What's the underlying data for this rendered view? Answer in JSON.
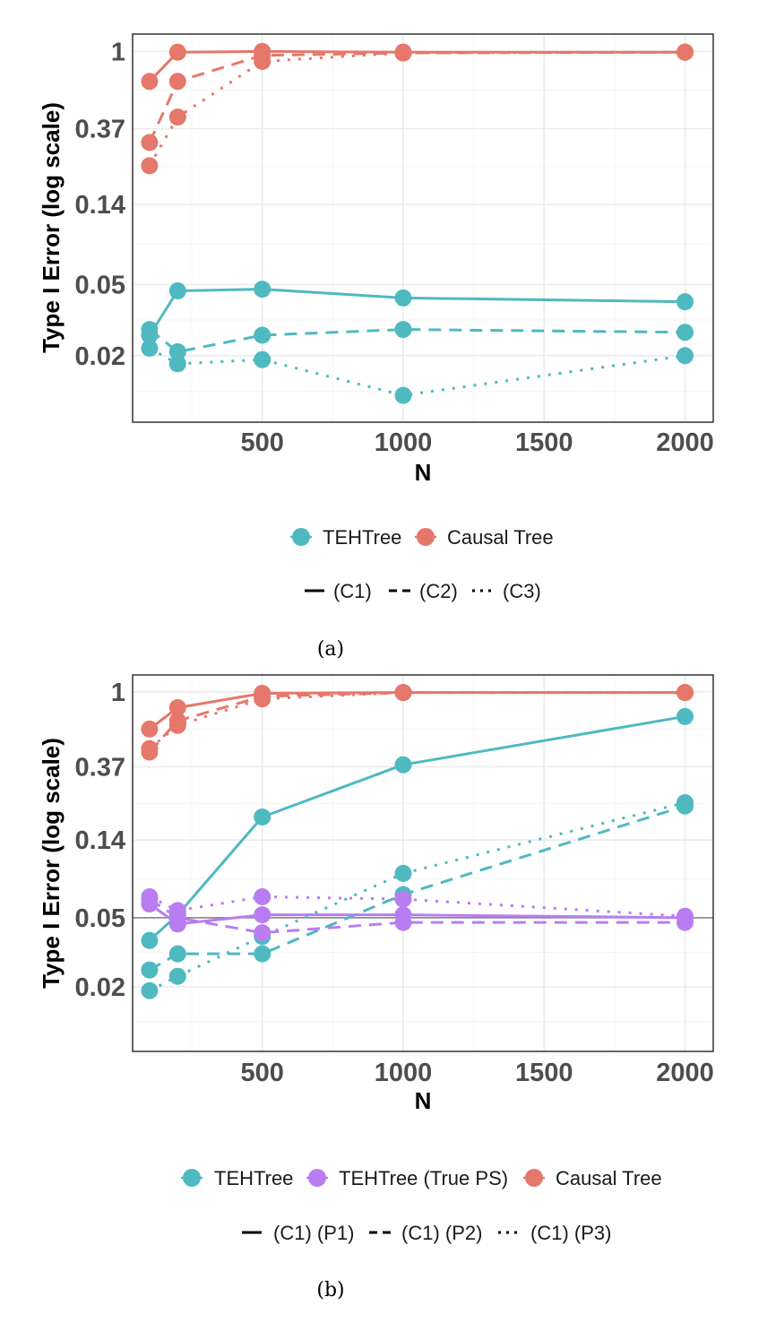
{
  "chart_data": [
    {
      "type": "line",
      "caption": "(a)",
      "xlabel": "N",
      "ylabel": "Type I Error (log scale)",
      "yscale": "log",
      "xlim": [
        40,
        2100
      ],
      "ylim": [
        0.0085,
        1.25
      ],
      "xticks": [
        500,
        1000,
        1500,
        2000
      ],
      "xtick_labels": [
        "500",
        "1000",
        "1500",
        "2000"
      ],
      "yticks": [
        0.02,
        0.05,
        0.14,
        0.37,
        1
      ],
      "ytick_labels": [
        "0.02",
        "0.05",
        "0.14",
        "0.37",
        "1"
      ],
      "x": [
        100,
        200,
        500,
        1000,
        2000
      ],
      "series": [
        {
          "name": "TEHTree (C1)",
          "method": "TEHTree",
          "setting": "(C1)",
          "values": [
            0.026,
            0.046,
            0.047,
            0.042,
            0.04
          ]
        },
        {
          "name": "TEHTree (C2)",
          "method": "TEHTree",
          "setting": "(C2)",
          "values": [
            0.028,
            0.021,
            0.026,
            0.028,
            0.027
          ]
        },
        {
          "name": "TEHTree (C3)",
          "method": "TEHTree",
          "setting": "(C3)",
          "values": [
            0.022,
            0.018,
            0.019,
            0.012,
            0.02
          ]
        },
        {
          "name": "Causal Tree (C1)",
          "method": "Causal Tree",
          "setting": "(C1)",
          "values": [
            0.68,
            0.99,
            1.0,
            0.99,
            0.99
          ]
        },
        {
          "name": "Causal Tree (C2)",
          "method": "Causal Tree",
          "setting": "(C2)",
          "values": [
            0.31,
            0.68,
            0.95,
            0.98,
            0.99
          ]
        },
        {
          "name": "Causal Tree (C3)",
          "method": "Causal Tree",
          "setting": "(C3)",
          "values": [
            0.23,
            0.43,
            0.88,
            0.98,
            0.99
          ]
        }
      ],
      "legend": {
        "placement": "bottom",
        "colour_entries": [
          "TEHTree",
          "Causal Tree"
        ],
        "linetype_entries": [
          "(C1)",
          "(C2)",
          "(C3)"
        ]
      }
    },
    {
      "type": "line",
      "caption": "(b)",
      "xlabel": "N",
      "ylabel": "Type I Error (log scale)",
      "yscale": "log",
      "xlim": [
        40,
        2100
      ],
      "ylim": [
        0.0085,
        1.25
      ],
      "xticks": [
        500,
        1000,
        1500,
        2000
      ],
      "xtick_labels": [
        "500",
        "1000",
        "1500",
        "2000"
      ],
      "yticks": [
        0.02,
        0.05,
        0.14,
        0.37,
        1
      ],
      "ytick_labels": [
        "0.02",
        "0.05",
        "0.14",
        "0.37",
        "1"
      ],
      "reference_line": 0.05,
      "x": [
        100,
        200,
        500,
        1000,
        2000
      ],
      "series": [
        {
          "name": "TEHTree (C1) (P1)",
          "method": "TEHTree",
          "setting": "(C1) (P1)",
          "values": [
            0.037,
            0.052,
            0.19,
            0.38,
            0.72
          ]
        },
        {
          "name": "TEHTree (C1) (P2)",
          "method": "TEHTree",
          "setting": "(C1) (P2)",
          "values": [
            0.025,
            0.031,
            0.031,
            0.068,
            0.22
          ]
        },
        {
          "name": "TEHTree (C1) (P3)",
          "method": "TEHTree",
          "setting": "(C1) (P3)",
          "values": [
            0.019,
            0.023,
            0.039,
            0.09,
            0.23
          ]
        },
        {
          "name": "TEHTree (True PS) (C1) (P1)",
          "method": "TEHTree (True PS)",
          "setting": "(C1) (P1)",
          "values": [
            0.06,
            0.046,
            0.052,
            0.052,
            0.05
          ]
        },
        {
          "name": "TEHTree (True PS) (C1) (P2)",
          "method": "TEHTree (True PS)",
          "setting": "(C1) (P2)",
          "values": [
            0.064,
            0.05,
            0.041,
            0.047,
            0.047
          ]
        },
        {
          "name": "TEHTree (True PS) (C1) (P3)",
          "method": "TEHTree (True PS)",
          "setting": "(C1) (P3)",
          "values": [
            0.066,
            0.055,
            0.066,
            0.064,
            0.051
          ]
        },
        {
          "name": "Causal Tree (C1) (P1)",
          "method": "Causal Tree",
          "setting": "(C1) (P1)",
          "values": [
            0.61,
            0.81,
            0.98,
            0.99,
            0.99
          ]
        },
        {
          "name": "Causal Tree (C1) (P2)",
          "method": "Causal Tree",
          "setting": "(C1) (P2)",
          "values": [
            0.45,
            0.68,
            0.94,
            0.99,
            0.99
          ]
        },
        {
          "name": "Causal Tree (C1) (P3)",
          "method": "Causal Tree",
          "setting": "(C1) (P3)",
          "values": [
            0.47,
            0.64,
            0.91,
            0.99,
            0.99
          ]
        }
      ],
      "legend": {
        "placement": "bottom",
        "colour_entries": [
          "TEHTree",
          "TEHTree (True PS)",
          "Causal Tree"
        ],
        "linetype_entries": [
          "(C1) (P1)",
          "(C1) (P2)",
          "(C1) (P3)"
        ]
      }
    }
  ],
  "colors": {
    "TEHTree": "#4fb9c0",
    "TEHTree (True PS)": "#b97df2",
    "Causal Tree": "#e5776b",
    "grid_major": "#ebebeb",
    "grid_minor": "#f5f5f5",
    "frame": "#333333",
    "reference_line": "#7f7f7f"
  }
}
